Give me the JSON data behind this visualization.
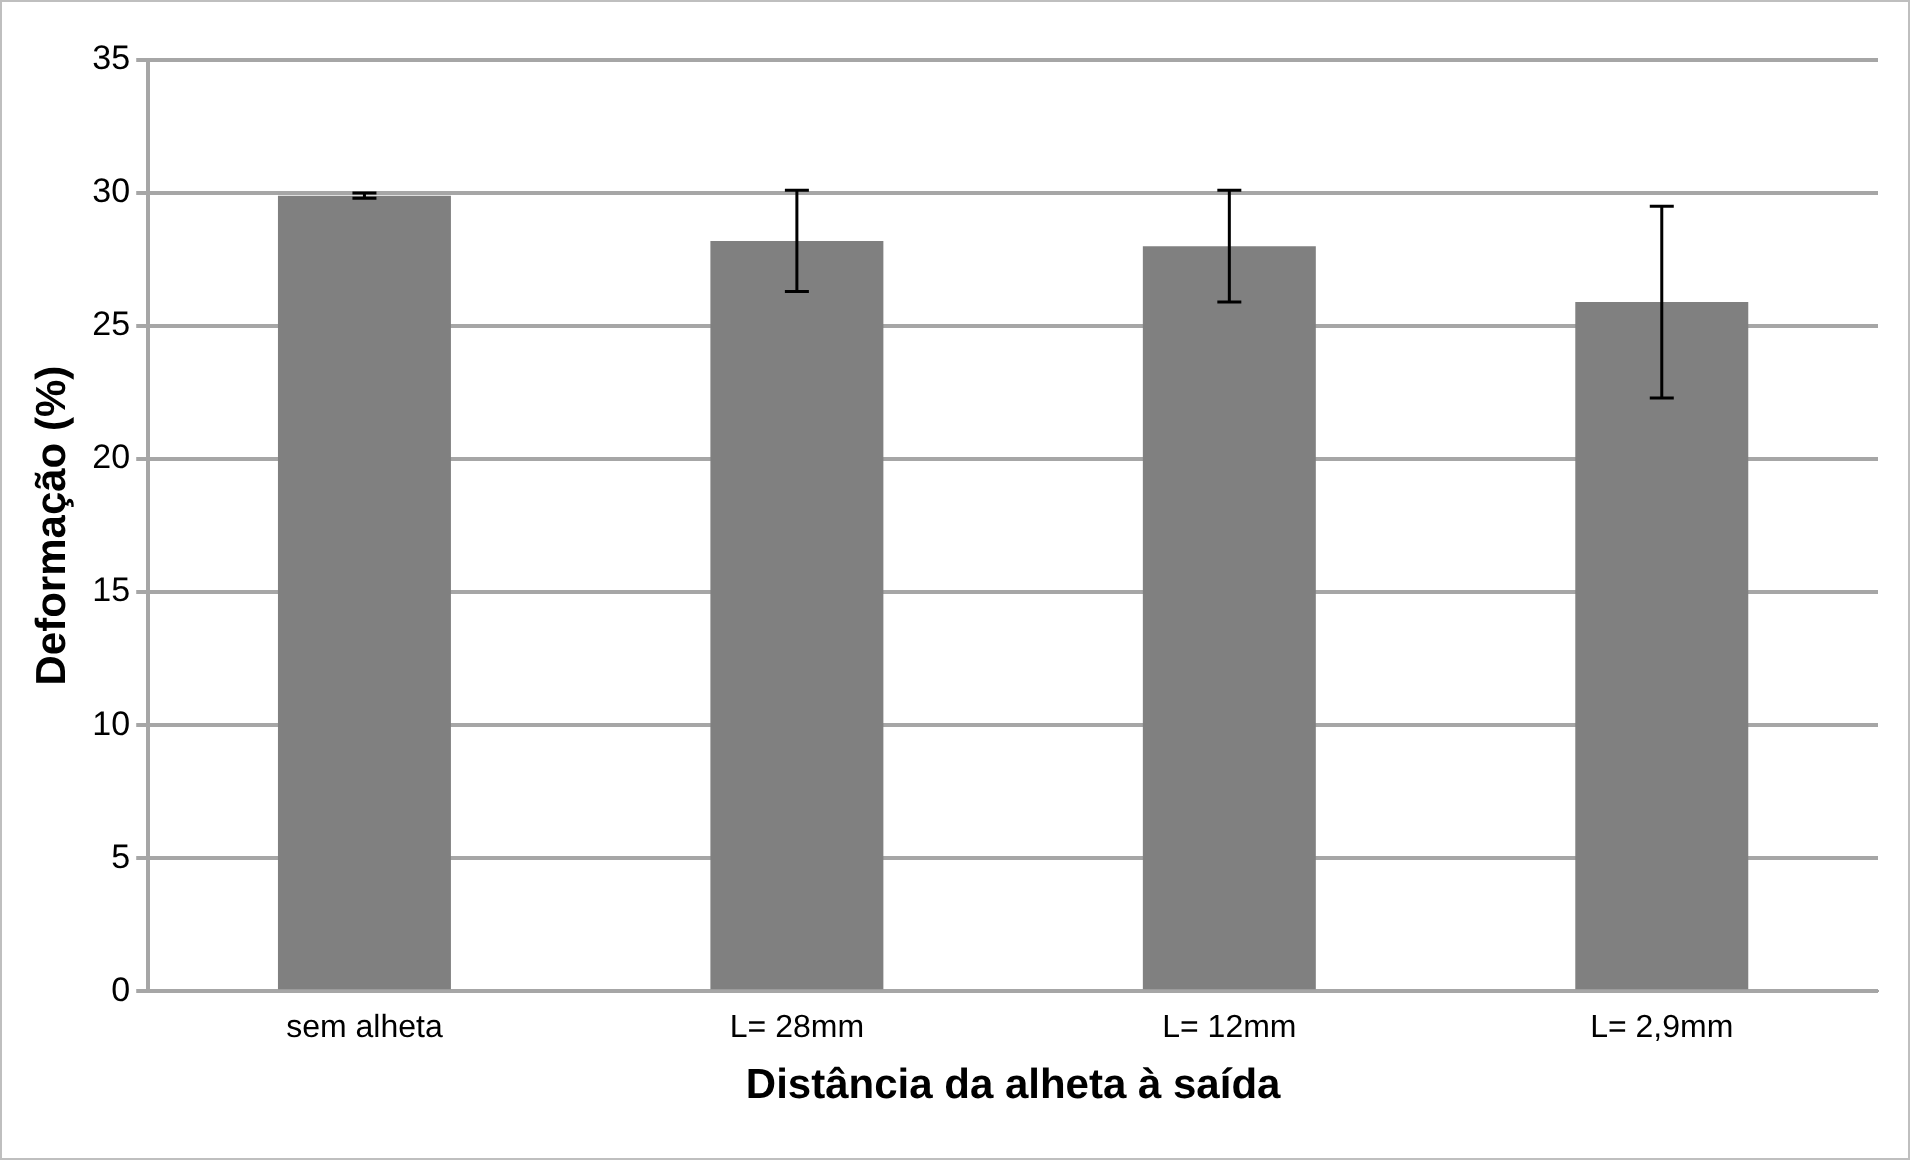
{
  "chart_data": {
    "type": "bar",
    "xlabel": "Distância da alheta à saída",
    "ylabel": "Deformação (%)",
    "categories": [
      "sem alheta",
      "L= 28mm",
      "L= 12mm",
      "L= 2,9mm"
    ],
    "values": [
      29.9,
      28.2,
      28.0,
      25.9
    ],
    "errors": [
      0.1,
      1.9,
      2.1,
      3.6
    ],
    "color": "#808080",
    "ylim": [
      0,
      35
    ],
    "yticks": [
      0,
      5,
      10,
      15,
      20,
      25,
      30,
      35
    ],
    "grid": "y",
    "legend": false
  }
}
